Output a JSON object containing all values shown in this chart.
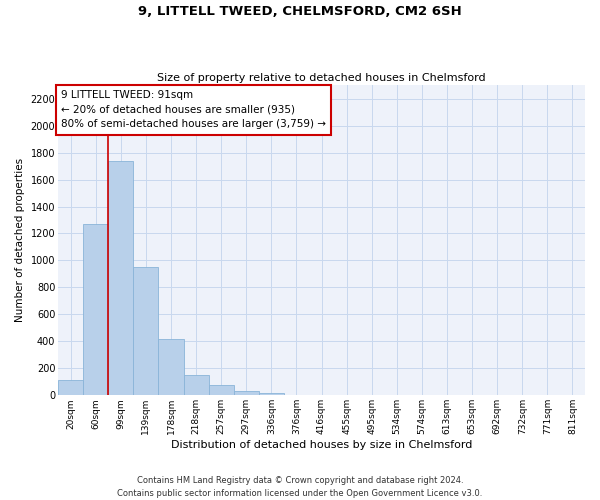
{
  "title": "9, LITTELL TWEED, CHELMSFORD, CM2 6SH",
  "subtitle": "Size of property relative to detached houses in Chelmsford",
  "xlabel": "Distribution of detached houses by size in Chelmsford",
  "ylabel": "Number of detached properties",
  "footer_line1": "Contains HM Land Registry data © Crown copyright and database right 2024.",
  "footer_line2": "Contains public sector information licensed under the Open Government Licence v3.0.",
  "bins": [
    "20sqm",
    "60sqm",
    "99sqm",
    "139sqm",
    "178sqm",
    "218sqm",
    "257sqm",
    "297sqm",
    "336sqm",
    "376sqm",
    "416sqm",
    "455sqm",
    "495sqm",
    "534sqm",
    "574sqm",
    "613sqm",
    "653sqm",
    "692sqm",
    "732sqm",
    "771sqm",
    "811sqm"
  ],
  "values": [
    115,
    1270,
    1740,
    950,
    415,
    150,
    75,
    30,
    20,
    0,
    0,
    0,
    0,
    0,
    0,
    0,
    0,
    0,
    0,
    0,
    0
  ],
  "bar_color": "#b8d0ea",
  "bar_edge_color": "#8ab4d8",
  "grid_color": "#c8d8ee",
  "background_color": "#eef2fa",
  "annotation_box_color": "#ffffff",
  "annotation_border_color": "#cc0000",
  "marker_line_color": "#cc0000",
  "annotation_title": "9 LITTELL TWEED: 91sqm",
  "annotation_line2": "← 20% of detached houses are smaller (935)",
  "annotation_line3": "80% of semi-detached houses are larger (3,759) →",
  "ylim": [
    0,
    2300
  ],
  "yticks": [
    0,
    200,
    400,
    600,
    800,
    1000,
    1200,
    1400,
    1600,
    1800,
    2000,
    2200
  ],
  "marker_bar_index": 2,
  "title_fontsize": 9.5,
  "subtitle_fontsize": 8,
  "ylabel_fontsize": 7.5,
  "xlabel_fontsize": 8,
  "tick_fontsize": 6.5,
  "annot_fontsize": 7.5,
  "footer_fontsize": 6
}
